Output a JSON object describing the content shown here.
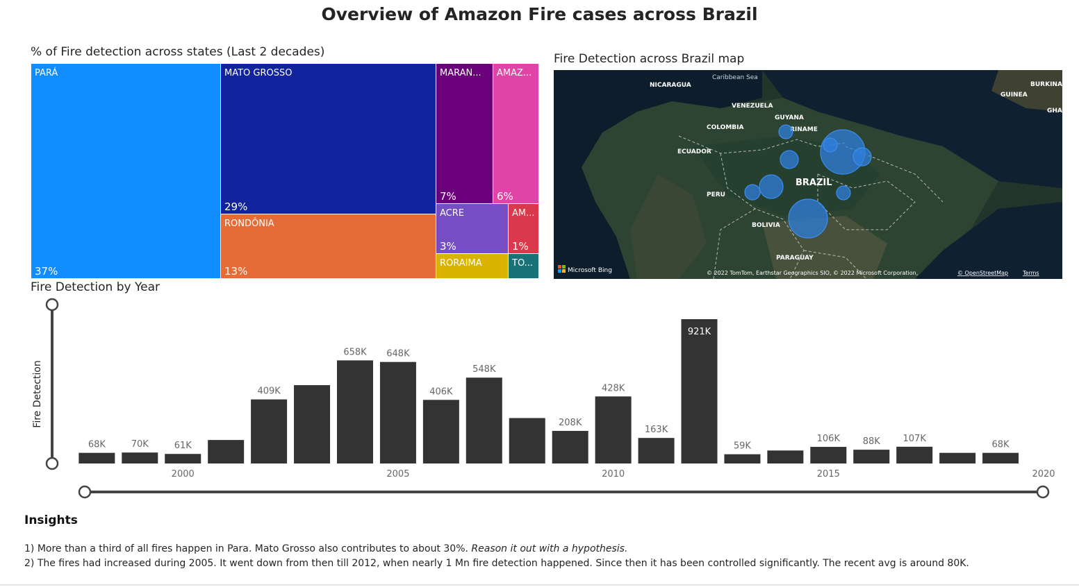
{
  "report_title": "Overview of Amazon Fire cases across Brazil",
  "treemap": {
    "title": "% of Fire detection across states (Last 2 decades)",
    "tiles": [
      {
        "label": "PARÁ",
        "pct": "37%",
        "color": "#118dff"
      },
      {
        "label": "MATO GROSSO",
        "pct": "29%",
        "color": "#12239e"
      },
      {
        "label": "RONDÔNIA",
        "pct": "13%",
        "color": "#e66c37"
      },
      {
        "label": "MARAN...",
        "pct": "7%",
        "color": "#6b007b"
      },
      {
        "label": "AMAZ...",
        "pct": "6%",
        "color": "#e044a7"
      },
      {
        "label": "ACRE",
        "pct": "3%",
        "color": "#744ec2"
      },
      {
        "label": "AM...",
        "pct": "1%",
        "color": "#d9394b"
      },
      {
        "label": "RORAIMA",
        "pct": "",
        "color": "#d9b300"
      },
      {
        "label": "TO...",
        "pct": "",
        "color": "#197278"
      }
    ]
  },
  "map": {
    "title": "Fire Detection across Brazil map",
    "labels": [
      "Caribbean Sea",
      "NICARAGUA",
      "VENEZUELA",
      "GUYANA",
      "RINAME",
      "COLOMBIA",
      "ECUADOR",
      "BRAZIL",
      "PERU",
      "BOLIVIA",
      "PARAGUAY",
      "BURKINA",
      "GUINEA",
      "GHA"
    ],
    "attribution_brand": "Microsoft Bing",
    "attribution_copyright": "© 2022 TomTom, Earthstar Geographics SIO, © 2022 Microsoft Corporation,",
    "attribution_osm": "© OpenStreetMap",
    "attribution_terms": "Terms"
  },
  "chart_title": "Fire Detection by Year",
  "chart_data": {
    "type": "bar",
    "x": [
      1998,
      1999,
      2000,
      2001,
      2002,
      2003,
      2004,
      2005,
      2006,
      2007,
      2008,
      2009,
      2010,
      2011,
      2012,
      2013,
      2014,
      2015,
      2016,
      2017,
      2018,
      2019
    ],
    "values": [
      68000,
      70000,
      61000,
      150000,
      409000,
      500000,
      658000,
      648000,
      406000,
      548000,
      290000,
      208000,
      428000,
      163000,
      921000,
      59000,
      83000,
      106000,
      88000,
      107000,
      68000,
      68000
    ],
    "data_labels": [
      "68K",
      "70K",
      "61K",
      "",
      "409K",
      "",
      "658K",
      "648K",
      "406K",
      "548K",
      "",
      "208K",
      "428K",
      "163K",
      "921K",
      "59K",
      "",
      "106K",
      "88K",
      "107K",
      "",
      "68K"
    ],
    "ylabel": "Fire Detection",
    "xlabel": "",
    "x_ticks": [
      2000,
      2005,
      2010,
      2015,
      2020
    ],
    "xlim": [
      1997.3,
      2020
    ],
    "ylim": [
      0,
      921000
    ],
    "bar_color": "#333333"
  },
  "insights": {
    "title": "Insights",
    "line1_main": "1) More than a third of all fires happen in Para. Mato Grosso also contributes to about 30%. ",
    "line1_italic": "Reason it out with a hypothesis.",
    "line2": "2) The fires had increased during 2005. It went down from then till 2012, when nearly 1 Mn fire detection happened. Since then it has been controlled significantly. The recent avg is around 80K."
  }
}
